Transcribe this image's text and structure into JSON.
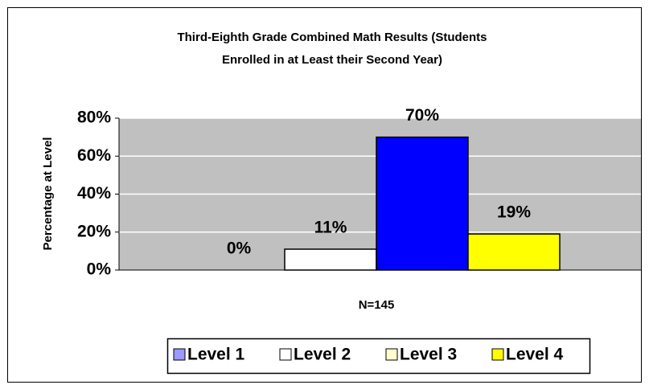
{
  "chart_data": {
    "type": "bar",
    "title": [
      "Third-Eighth Grade Combined Math Results (Students",
      "Enrolled in at Least their Second Year)"
    ],
    "ylabel": "Percentage at Level",
    "categories": [
      "N=145"
    ],
    "series": [
      {
        "name": "Level 1",
        "color": "#9999ff",
        "legend_color": "#9999ff",
        "values": [
          0
        ],
        "value_labels": [
          "0%"
        ]
      },
      {
        "name": "Level 2",
        "color": "#ffffff",
        "legend_color": "#ffffff",
        "values": [
          11
        ],
        "value_labels": [
          "11%"
        ]
      },
      {
        "name": "Level 3",
        "color": "#0000ff",
        "legend_color": "#ffffcc",
        "values": [
          70
        ],
        "value_labels": [
          "70%"
        ]
      },
      {
        "name": "Level 4",
        "color": "#ffff00",
        "legend_color": "#ffff00",
        "values": [
          19
        ],
        "value_labels": [
          "19%"
        ]
      }
    ],
    "ylim": [
      0,
      80
    ],
    "yticks": [
      {
        "value": 0,
        "label": "0%"
      },
      {
        "value": 20,
        "label": "20%"
      },
      {
        "value": 40,
        "label": "40%"
      },
      {
        "value": 60,
        "label": "60%"
      },
      {
        "value": 80,
        "label": "80%"
      }
    ],
    "grid": true,
    "plot_background": "#c0c0c0",
    "legend": "bottom"
  }
}
